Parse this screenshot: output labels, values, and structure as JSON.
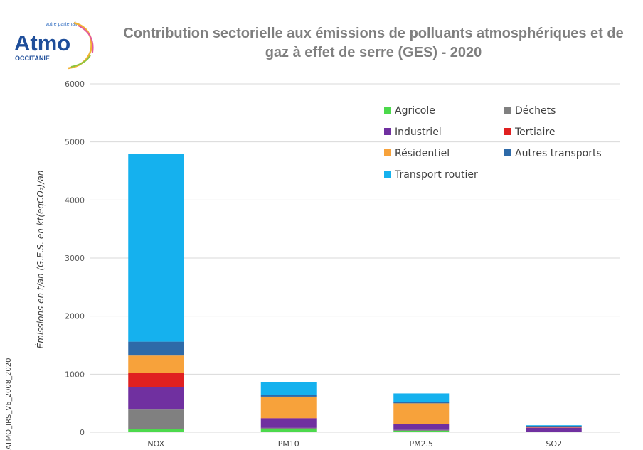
{
  "logo": {
    "name": "Atmo",
    "tagline": "votre partenair",
    "region": "OCCITANIE"
  },
  "side_code": "ATMO_IRS_V6_2008_2020",
  "chart_data": {
    "type": "bar",
    "stacked": true,
    "title_lines": [
      "Contribution sectorielle aux émissions de polluants atmosphériques et de",
      "gaz à effet de serre (GES) - 2020"
    ],
    "ylabel": "Émissions en t/an (G.E.S. en kt(eqCO₂)/an",
    "xlabel": "",
    "ylim": [
      0,
      6000
    ],
    "yticks": [
      "0",
      "1000",
      "2000",
      "3000",
      "4000",
      "5000",
      "6000"
    ],
    "grid": true,
    "legend_position": "top-right",
    "categories": [
      "NOX",
      "PM10",
      "PM2.5",
      "SO2"
    ],
    "series": [
      {
        "name": "Agricole",
        "color": "#4cd94c",
        "values": [
          50,
          60,
          25,
          5
        ]
      },
      {
        "name": "Déchets",
        "color": "#808080",
        "values": [
          340,
          15,
          15,
          3
        ]
      },
      {
        "name": "Industriel",
        "color": "#7030a0",
        "values": [
          390,
          165,
          95,
          70
        ]
      },
      {
        "name": "Tertiaire",
        "color": "#e02020",
        "values": [
          240,
          3,
          3,
          5
        ]
      },
      {
        "name": "Résidentiel",
        "color": "#f7a23b",
        "values": [
          300,
          370,
          360,
          12
        ]
      },
      {
        "name": "Autres transports",
        "color": "#2e6aa8",
        "values": [
          240,
          25,
          20,
          15
        ]
      },
      {
        "name": "Transport routier",
        "color": "#15b1ee",
        "values": [
          3230,
          220,
          150,
          10
        ]
      }
    ]
  }
}
